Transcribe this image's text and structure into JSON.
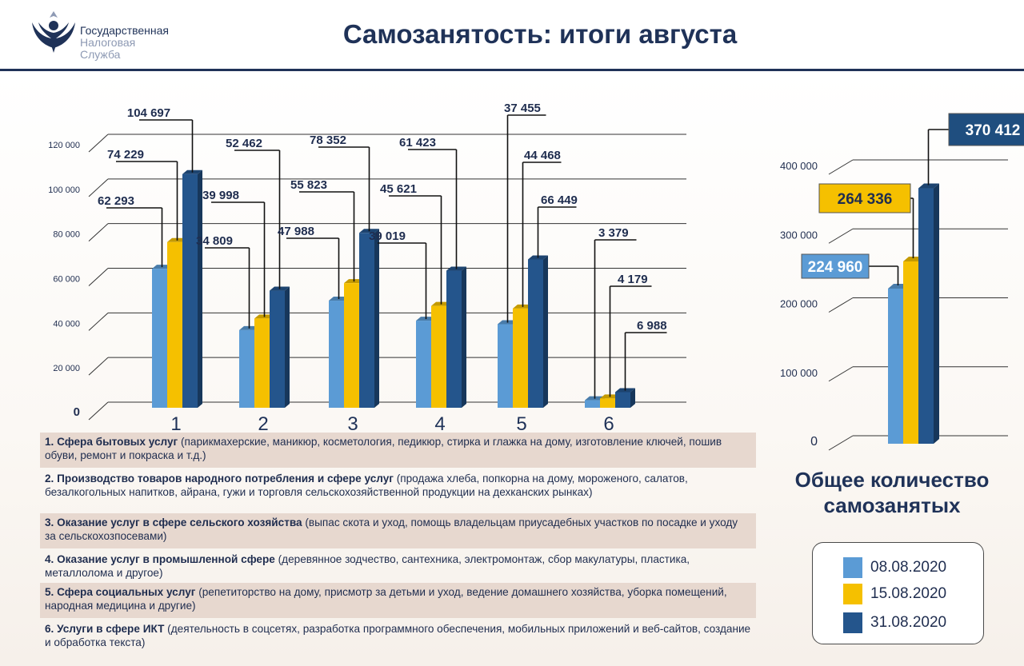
{
  "header": {
    "org_line1": "Государственная",
    "org_line2": "Налоговая",
    "org_line3": "Служба",
    "title": "Самозанятость: итоги августа"
  },
  "colors": {
    "series1": "#5b9bd5",
    "series2": "#f5c000",
    "series3": "#24558c",
    "label_box_series1": "#5b9bd5",
    "label_box_series2": "#f5c000",
    "label_box_series3": "#1f4e7f"
  },
  "chart_data": [
    {
      "type": "bar",
      "categories": [
        "1",
        "2",
        "3",
        "4",
        "5",
        "6"
      ],
      "series": [
        {
          "name": "08.08.2020",
          "values": [
            62293,
            34809,
            47988,
            39019,
            37455,
            3379
          ]
        },
        {
          "name": "15.08.2020",
          "values": [
            74229,
            39998,
            55823,
            45621,
            44468,
            4179
          ]
        },
        {
          "name": "31.08.2020",
          "values": [
            104697,
            52462,
            78352,
            61423,
            66449,
            6988
          ]
        }
      ],
      "data_labels": [
        [
          "62 293",
          "34 809",
          "47 988",
          "39 019",
          "37 455",
          "3 379"
        ],
        [
          "74 229",
          "39 998",
          "55 823",
          "45 621",
          "44 468",
          "4 179"
        ],
        [
          "104 697",
          "52 462",
          "78 352",
          "61 423",
          "66 449",
          "6 988"
        ]
      ],
      "ylim": [
        0,
        120000
      ],
      "yticks": [
        0,
        20000,
        40000,
        60000,
        80000,
        100000,
        120000
      ],
      "ytick_labels": [
        "0",
        "20 000",
        "40 000",
        "60 000",
        "80 000",
        "100 000",
        "120 000"
      ],
      "grid": true
    },
    {
      "type": "bar",
      "categories": [
        ""
      ],
      "series": [
        {
          "name": "08.08.2020",
          "values": [
            224960
          ]
        },
        {
          "name": "15.08.2020",
          "values": [
            264336
          ]
        },
        {
          "name": "31.08.2020",
          "values": [
            370412
          ]
        }
      ],
      "data_labels": [
        "224 960",
        "264 336",
        "370 412"
      ],
      "ylim": [
        0,
        400000
      ],
      "yticks": [
        0,
        100000,
        200000,
        300000,
        400000
      ],
      "ytick_labels": [
        "0",
        "100 000",
        "200 000",
        "300 000",
        "400 000"
      ],
      "grid": true,
      "title": "Общее количество самозанятых"
    }
  ],
  "categories_desc": [
    {
      "num": "1.",
      "bold": "Сфера бытовых услуг",
      "text": " (парикмахерские, маникюр, косметология, педикюр, стирка и  глажка на дому, изготовление ключей, пошив обуви, ремонт и покраска и т.д.)"
    },
    {
      "num": "2.",
      "bold": "Производство товаров народного потребления и сфере услуг",
      "text": " (продажа хлеба, попкорна на дому, мороженого, салатов, безалкогольных напитков, айрана, гужи и торговля сельскохозяйственной продукции на дехканских рынках)"
    },
    {
      "num": "3.",
      "bold": "Оказание услуг в сфере сельского хозяйства",
      "text": " (выпас скота и уход, помощь владельцам приусадебных участков по посадке и уходу за сельскохозпосевами)"
    },
    {
      "num": "4.",
      "bold": "Оказание услуг в промышленной сфере",
      "text": " (деревянное зодчество, сантехника, электромонтаж, сбор макулатуры, пластика, металлолома и другое)"
    },
    {
      "num": "5.",
      "bold": "Сфера социальных услуг",
      "text": " (репетиторство на дому, присмотр за детьми и уход, ведение домашнего хозяйства, уборка помещений, народная медицина и другие)"
    },
    {
      "num": "6.",
      "bold": "Услуги в сфере ИКТ",
      "text": " (деятельность в соцсетях, разработка программного обеспечения, мобильных приложений и веб-сайтов, создание и обработка текста)"
    }
  ],
  "total": {
    "title_line1": "Общее количество",
    "title_line2": "самозанятых"
  },
  "legend": {
    "items": [
      {
        "label": "08.08.2020",
        "color": "#5b9bd5"
      },
      {
        "label": "15.08.2020",
        "color": "#f5c000"
      },
      {
        "label": "31.08.2020",
        "color": "#24558c"
      }
    ]
  }
}
